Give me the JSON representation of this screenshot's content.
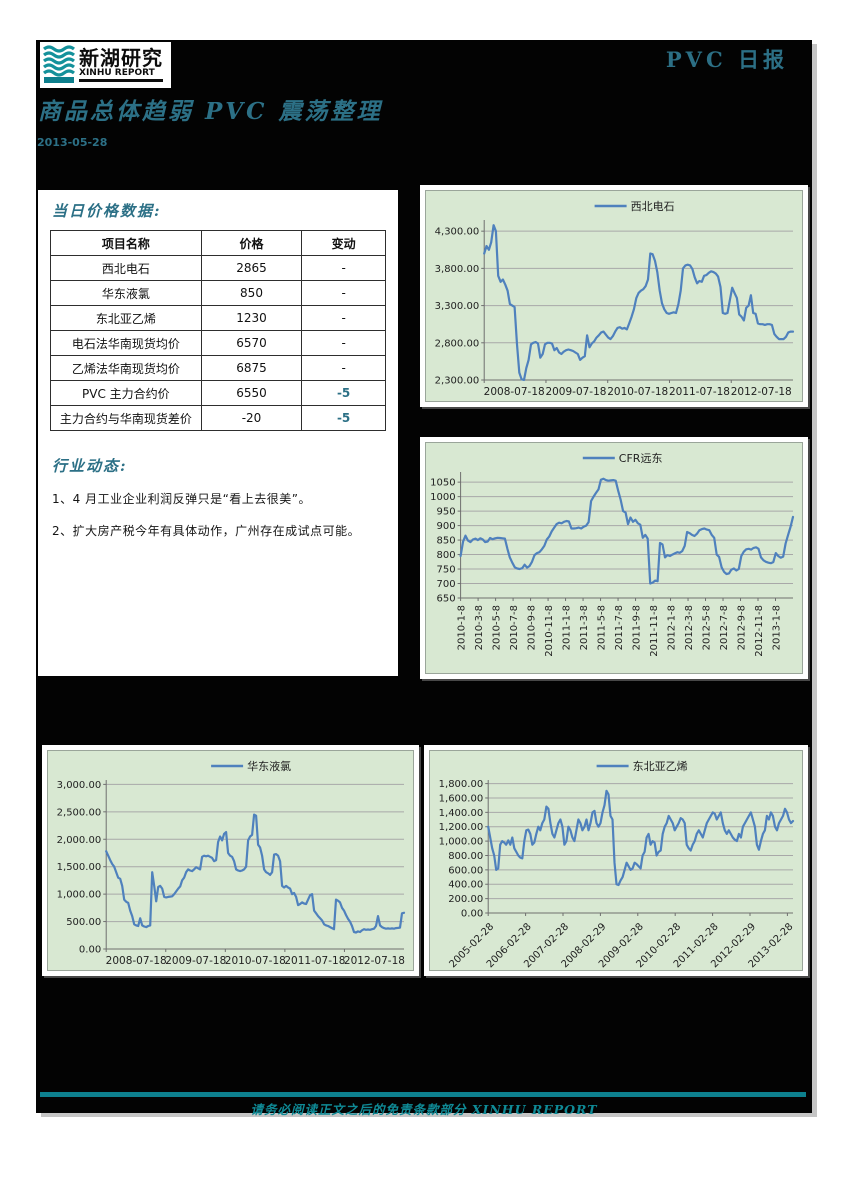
{
  "header": {
    "brand_cn": "新湖研究",
    "brand_en": "XINHU REPORT",
    "report_type": "PVC 日报",
    "title": "商品总体趋弱 PVC 震荡整理",
    "date": "2013-05-28"
  },
  "price_section": {
    "heading": "当日价格数据:",
    "columns": [
      "项目名称",
      "价格",
      "变动"
    ],
    "rows": [
      [
        "西北电石",
        "2865",
        "-"
      ],
      [
        "华东液氯",
        "850",
        "-"
      ],
      [
        "东北亚乙烯",
        "1230",
        "-"
      ],
      [
        "电石法华南现货均价",
        "6570",
        "-"
      ],
      [
        "乙烯法华南现货均价",
        "6875",
        "-"
      ],
      [
        "PVC 主力合约价",
        "6550",
        "-5"
      ],
      [
        "主力合约与华南现货差价",
        "-20",
        "-5"
      ]
    ]
  },
  "news_section": {
    "heading": "行业动态:",
    "items": [
      "1、4 月工业企业利润反弹只是“看上去很美”。",
      "2、扩大房产税今年有具体动作，广州存在成试点可能。"
    ]
  },
  "footer": {
    "disclaimer": "请务必阅读正文之后的免责条款部分 XINHU REPORT"
  },
  "colors": {
    "accent_teal": "#2c7086",
    "footer_teal": "#0d808e",
    "chart_line": "#4f81bd",
    "chart_bg": "#d8e8d2",
    "chart_grid": "#a8a8a8",
    "chart_axis": "#6f6f6f"
  },
  "chart_data": [
    {
      "type": "line",
      "name": "西北电石",
      "legend_position": "top",
      "grid": true,
      "ylim": [
        2300,
        4450
      ],
      "ytick_values": [
        4300,
        3800,
        3300,
        2800,
        2300
      ],
      "ytick_labels": [
        "4,300.00",
        "3,800.00",
        "3,300.00",
        "2,800.00",
        "2,300.00"
      ],
      "xticks": [
        "2008-07-18",
        "2009-07-18",
        "2010-07-18",
        "2011-07-18",
        "2012-07-18"
      ],
      "xtick_rotation": 0,
      "xtick_den": 5,
      "values": [
        4000,
        4100,
        4050,
        4150,
        4380,
        4300,
        3700,
        3620,
        3650,
        3580,
        3500,
        3320,
        3300,
        3280,
        2780,
        2400,
        2310,
        2300,
        2460,
        2570,
        2780,
        2800,
        2810,
        2790,
        2600,
        2650,
        2780,
        2800,
        2800,
        2790,
        2700,
        2730,
        2670,
        2650,
        2680,
        2700,
        2710,
        2700,
        2690,
        2670,
        2650,
        2570,
        2600,
        2620,
        2900,
        2740,
        2790,
        2820,
        2870,
        2900,
        2940,
        2950,
        2910,
        2870,
        2850,
        2890,
        2950,
        3000,
        3010,
        2990,
        3000,
        2980,
        3060,
        3150,
        3250,
        3400,
        3470,
        3500,
        3520,
        3560,
        3650,
        4000,
        3990,
        3900,
        3750,
        3500,
        3330,
        3250,
        3200,
        3190,
        3200,
        3210,
        3200,
        3320,
        3500,
        3800,
        3840,
        3850,
        3840,
        3790,
        3680,
        3600,
        3630,
        3620,
        3700,
        3710,
        3740,
        3760,
        3750,
        3730,
        3690,
        3550,
        3200,
        3190,
        3200,
        3370,
        3540,
        3470,
        3400,
        3180,
        3150,
        3100,
        3270,
        3300,
        3440,
        3200,
        3190,
        3060,
        3050,
        3050,
        3040,
        3050,
        3050,
        3040,
        2920,
        2880,
        2850,
        2850,
        2850,
        2880,
        2940,
        2950,
        2950
      ]
    },
    {
      "type": "line",
      "name": "CFR远东",
      "legend_position": "top",
      "grid": true,
      "ylim": [
        650,
        1085
      ],
      "ytick_values": [
        1050,
        1000,
        950,
        900,
        850,
        800,
        750,
        700,
        650
      ],
      "ytick_labels": [
        "1050",
        "1000",
        "950",
        "900",
        "850",
        "800",
        "750",
        "700",
        "650"
      ],
      "xticks": [
        "2010-1-8",
        "2010-3-8",
        "2010-5-8",
        "2010-7-8",
        "2010-9-8",
        "2010-11-8",
        "2011-1-8",
        "2011-3-8",
        "2011-5-8",
        "2011-7-8",
        "2011-9-8",
        "2011-11-8",
        "2012-1-8",
        "2012-3-8",
        "2012-5-8",
        "2012-7-8",
        "2012-9-8",
        "2012-11-8",
        "2013-1-8"
      ],
      "xtick_rotation": 90,
      "xtick_den": 19,
      "values": [
        795,
        845,
        865,
        848,
        843,
        852,
        855,
        850,
        856,
        852,
        843,
        845,
        857,
        853,
        856,
        858,
        857,
        856,
        855,
        820,
        790,
        772,
        756,
        752,
        750,
        753,
        765,
        755,
        760,
        775,
        798,
        805,
        808,
        818,
        830,
        852,
        862,
        880,
        893,
        905,
        910,
        908,
        913,
        916,
        914,
        890,
        890,
        891,
        893,
        890,
        896,
        900,
        912,
        985,
        1000,
        1013,
        1025,
        1058,
        1062,
        1057,
        1055,
        1056,
        1057,
        1055,
        1020,
        990,
        950,
        945,
        905,
        928,
        913,
        920,
        908,
        903,
        858,
        868,
        855,
        700,
        703,
        710,
        708,
        840,
        835,
        790,
        798,
        795,
        800,
        804,
        808,
        806,
        812,
        830,
        878,
        874,
        868,
        864,
        872,
        884,
        888,
        890,
        886,
        884,
        868,
        858,
        800,
        792,
        756,
        740,
        733,
        735,
        748,
        752,
        745,
        750,
        795,
        810,
        818,
        820,
        817,
        823,
        825,
        820,
        790,
        780,
        775,
        772,
        770,
        774,
        805,
        795,
        789,
        793,
        838,
        868,
        895,
        930
      ]
    },
    {
      "type": "line",
      "name": "华东液氯",
      "legend_position": "top",
      "grid": true,
      "ylim": [
        0,
        3080
      ],
      "ytick_values": [
        3000,
        2500,
        2000,
        1500,
        1000,
        500,
        0
      ],
      "ytick_labels": [
        "3,000.00",
        "2,500.00",
        "2,000.00",
        "1,500.00",
        "1,000.00",
        "500.00",
        "0.00"
      ],
      "xticks": [
        "2008-07-18",
        "2009-07-18",
        "2010-07-18",
        "2011-07-18",
        "2012-07-18"
      ],
      "xtick_rotation": 0,
      "xtick_den": 5,
      "values": [
        1780,
        1700,
        1620,
        1550,
        1500,
        1400,
        1300,
        1280,
        1150,
        900,
        860,
        840,
        700,
        600,
        450,
        430,
        420,
        560,
        430,
        410,
        400,
        420,
        430,
        1400,
        1150,
        870,
        1130,
        1150,
        1100,
        950,
        940,
        950,
        955,
        960,
        1000,
        1050,
        1100,
        1140,
        1250,
        1300,
        1400,
        1450,
        1430,
        1420,
        1450,
        1490,
        1470,
        1450,
        1680,
        1700,
        1690,
        1700,
        1680,
        1660,
        1600,
        1620,
        1950,
        2050,
        1980,
        2100,
        2130,
        1750,
        1700,
        1680,
        1600,
        1450,
        1430,
        1420,
        1430,
        1450,
        1500,
        1980,
        2050,
        2080,
        2450,
        2430,
        1900,
        1850,
        1700,
        1450,
        1400,
        1380,
        1350,
        1400,
        1720,
        1730,
        1700,
        1600,
        1150,
        1120,
        1150,
        1120,
        1100,
        1000,
        1020,
        950,
        800,
        820,
        850,
        830,
        820,
        900,
        980,
        1000,
        700,
        650,
        600,
        560,
        520,
        450,
        430,
        420,
        400,
        380,
        360,
        900,
        880,
        850,
        750,
        700,
        620,
        550,
        500,
        420,
        310,
        300,
        320,
        310,
        340,
        360,
        350,
        355,
        350,
        360,
        370,
        420,
        600,
        430,
        400,
        380,
        370,
        375,
        370,
        375,
        370,
        380,
        385,
        390,
        650,
        660
      ]
    },
    {
      "type": "line",
      "name": "东北亚乙烯",
      "legend_position": "top",
      "grid": true,
      "ylim": [
        0,
        1850
      ],
      "ytick_values": [
        1800,
        1600,
        1400,
        1200,
        1000,
        800,
        600,
        400,
        200,
        0
      ],
      "ytick_labels": [
        "1,800.00",
        "1,600.00",
        "1,400.00",
        "1,200.00",
        "1,000.00",
        "800.00",
        "600.00",
        "400.00",
        "200.00",
        "0.00"
      ],
      "xticks": [
        "2005-02-28",
        "2006-02-28",
        "2007-02-28",
        "2008-02-29",
        "2009-02-28",
        "2010-02-28",
        "2011-02-28",
        "2012-02-29",
        "2013-02-28"
      ],
      "xtick_rotation": 45,
      "xtick_den": 8.15,
      "values": [
        1200,
        1050,
        900,
        800,
        600,
        620,
        950,
        1000,
        980,
        950,
        1010,
        950,
        1050,
        900,
        850,
        800,
        770,
        760,
        1000,
        1150,
        1160,
        1100,
        950,
        980,
        1100,
        1200,
        1150,
        1250,
        1300,
        1480,
        1450,
        1250,
        1100,
        1050,
        1150,
        1250,
        1300,
        1200,
        950,
        1000,
        1200,
        1150,
        1050,
        1000,
        1150,
        1300,
        1250,
        1150,
        1200,
        1300,
        1150,
        1250,
        1400,
        1420,
        1250,
        1200,
        1250,
        1400,
        1500,
        1700,
        1650,
        1350,
        1300,
        700,
        400,
        390,
        450,
        500,
        600,
        700,
        650,
        600,
        620,
        700,
        680,
        650,
        620,
        800,
        850,
        1050,
        1100,
        950,
        1000,
        980,
        800,
        850,
        870,
        1100,
        1200,
        1250,
        1350,
        1300,
        1250,
        1150,
        1200,
        1250,
        1320,
        1300,
        1250,
        950,
        900,
        870,
        950,
        1000,
        1100,
        1150,
        1100,
        1050,
        1150,
        1250,
        1300,
        1350,
        1400,
        1380,
        1300,
        1350,
        1400,
        1250,
        1150,
        1100,
        1150,
        1100,
        1050,
        1020,
        1000,
        1100,
        1050,
        1200,
        1250,
        1300,
        1350,
        1400,
        1300,
        1200,
        950,
        880,
        1000,
        1100,
        1150,
        1350,
        1300,
        1400,
        1350,
        1200,
        1150,
        1250,
        1300,
        1350,
        1450,
        1400,
        1300,
        1250,
        1280
      ]
    }
  ]
}
